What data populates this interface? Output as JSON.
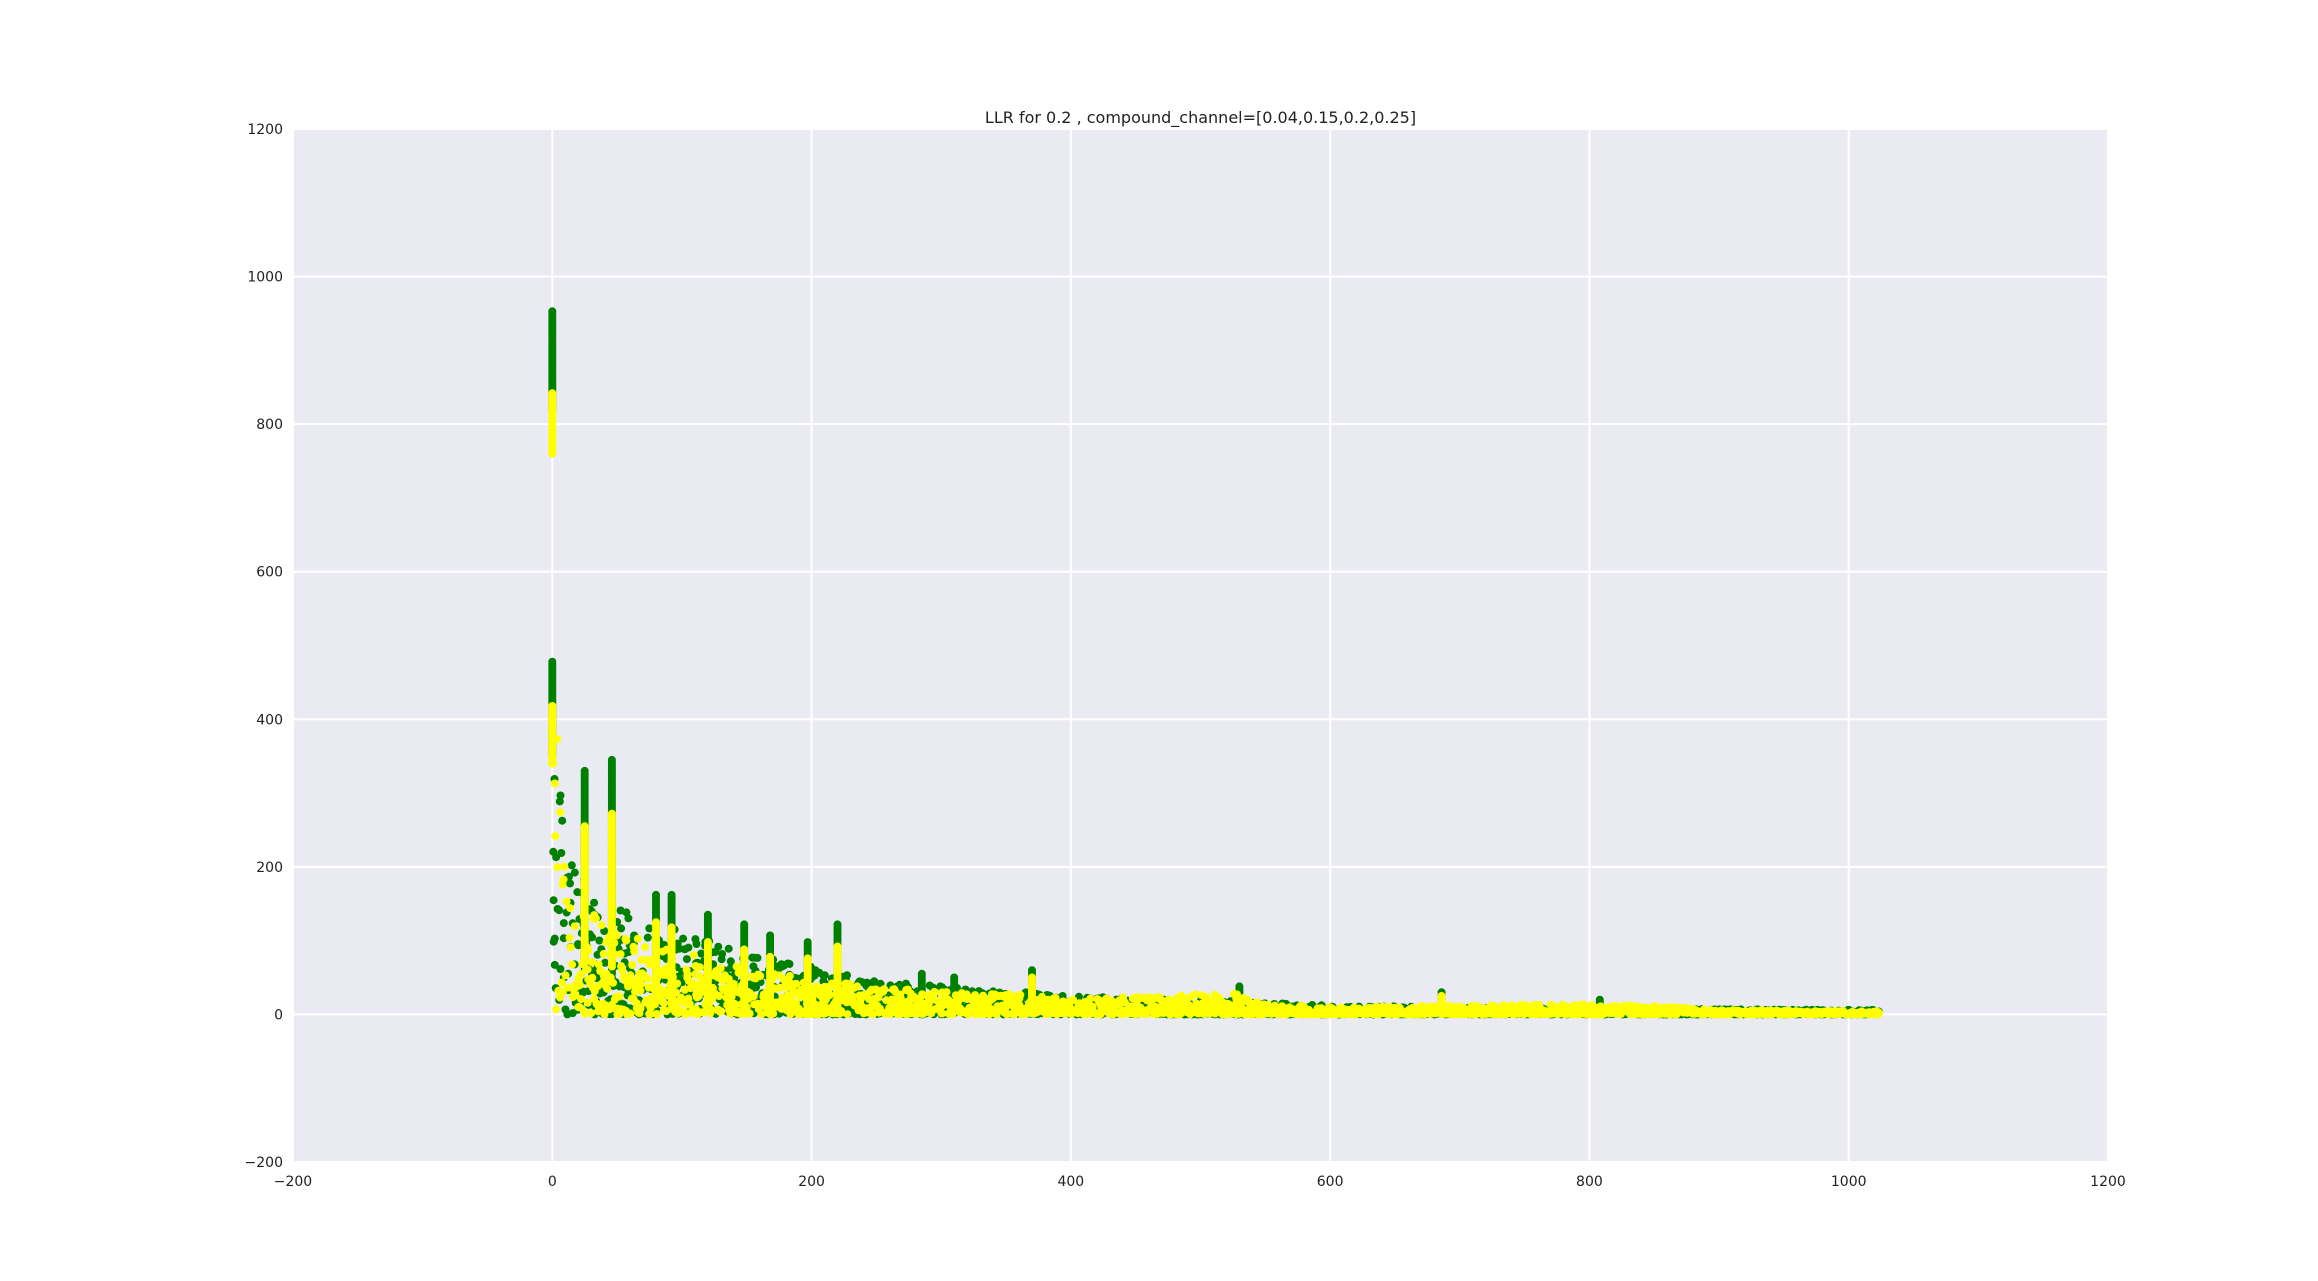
{
  "chart_data": {
    "type": "scatter",
    "title": "LLR for 0.2 , compound_channel=[0.04,0.15,0.2,0.25]",
    "xlabel": "",
    "ylabel": "",
    "xlim": [
      -200,
      1200
    ],
    "ylim": [
      -200,
      1200
    ],
    "xticks": [
      -200,
      0,
      200,
      400,
      600,
      800,
      1000,
      1200
    ],
    "yticks": [
      -200,
      0,
      200,
      400,
      600,
      800,
      1000,
      1200
    ],
    "xtick_labels": [
      "−200",
      "0",
      "200",
      "400",
      "600",
      "800",
      "1000",
      "1200"
    ],
    "ytick_labels": [
      "−200",
      "0",
      "200",
      "400",
      "600",
      "800",
      "1000",
      "1200"
    ],
    "grid": true,
    "background": "#eaeaf2",
    "n_points": 1024,
    "series": [
      {
        "color": "#008000",
        "spikes": [
          {
            "x": 0,
            "y_min": 820,
            "y_max": 953
          },
          {
            "x": 0,
            "y_min": 350,
            "y_max": 478
          },
          {
            "x": 25,
            "y_min": 60,
            "y_max": 330
          },
          {
            "x": 46,
            "y_min": 55,
            "y_max": 345
          },
          {
            "x": 80,
            "y_min": 25,
            "y_max": 162
          },
          {
            "x": 92,
            "y_min": 20,
            "y_max": 162
          },
          {
            "x": 120,
            "y_min": 10,
            "y_max": 135
          },
          {
            "x": 148,
            "y_min": 5,
            "y_max": 122
          },
          {
            "x": 168,
            "y_min": 5,
            "y_max": 107
          },
          {
            "x": 197,
            "y_min": 5,
            "y_max": 98
          },
          {
            "x": 220,
            "y_min": 5,
            "y_max": 122
          },
          {
            "x": 285,
            "y_min": 2,
            "y_max": 55
          },
          {
            "x": 310,
            "y_min": 2,
            "y_max": 50
          },
          {
            "x": 370,
            "y_min": 2,
            "y_max": 60
          },
          {
            "x": 530,
            "y_min": 2,
            "y_max": 38
          },
          {
            "x": 686,
            "y_min": 2,
            "y_max": 30
          },
          {
            "x": 808,
            "y_min": 2,
            "y_max": 20
          }
        ],
        "envelope": [
          [
            0,
            478
          ],
          [
            5,
            430
          ],
          [
            10,
            215
          ],
          [
            20,
            200
          ],
          [
            30,
            175
          ],
          [
            40,
            150
          ],
          [
            60,
            140
          ],
          [
            80,
            125
          ],
          [
            100,
            112
          ],
          [
            130,
            95
          ],
          [
            160,
            78
          ],
          [
            200,
            65
          ],
          [
            250,
            45
          ],
          [
            300,
            38
          ],
          [
            350,
            32
          ],
          [
            400,
            25
          ],
          [
            450,
            22
          ],
          [
            500,
            20
          ],
          [
            550,
            16
          ],
          [
            600,
            12
          ],
          [
            700,
            10
          ],
          [
            800,
            9
          ],
          [
            900,
            7
          ],
          [
            1023,
            6
          ]
        ]
      },
      {
        "color": "#ffff00",
        "spikes": [
          {
            "x": 0,
            "y_min": 760,
            "y_max": 842
          },
          {
            "x": 0,
            "y_min": 340,
            "y_max": 418
          },
          {
            "x": 25,
            "y_min": 70,
            "y_max": 255
          },
          {
            "x": 46,
            "y_min": 65,
            "y_max": 272
          },
          {
            "x": 80,
            "y_min": 20,
            "y_max": 125
          },
          {
            "x": 92,
            "y_min": 15,
            "y_max": 118
          },
          {
            "x": 120,
            "y_min": 8,
            "y_max": 98
          },
          {
            "x": 148,
            "y_min": 4,
            "y_max": 88
          },
          {
            "x": 168,
            "y_min": 4,
            "y_max": 78
          },
          {
            "x": 197,
            "y_min": 4,
            "y_max": 76
          },
          {
            "x": 220,
            "y_min": 4,
            "y_max": 92
          },
          {
            "x": 370,
            "y_min": 2,
            "y_max": 50
          },
          {
            "x": 686,
            "y_min": 2,
            "y_max": 25
          }
        ],
        "envelope": [
          [
            0,
            418
          ],
          [
            5,
            380
          ],
          [
            10,
            190
          ],
          [
            20,
            160
          ],
          [
            30,
            140
          ],
          [
            40,
            120
          ],
          [
            60,
            108
          ],
          [
            80,
            95
          ],
          [
            100,
            85
          ],
          [
            130,
            72
          ],
          [
            160,
            60
          ],
          [
            200,
            50
          ],
          [
            250,
            36
          ],
          [
            300,
            32
          ],
          [
            350,
            28
          ],
          [
            400,
            22
          ],
          [
            450,
            24
          ],
          [
            500,
            28
          ],
          [
            530,
            30
          ],
          [
            550,
            14
          ],
          [
            600,
            10
          ],
          [
            700,
            12
          ],
          [
            800,
            14
          ],
          [
            850,
            12
          ],
          [
            900,
            6
          ],
          [
            1023,
            4
          ]
        ]
      }
    ]
  }
}
